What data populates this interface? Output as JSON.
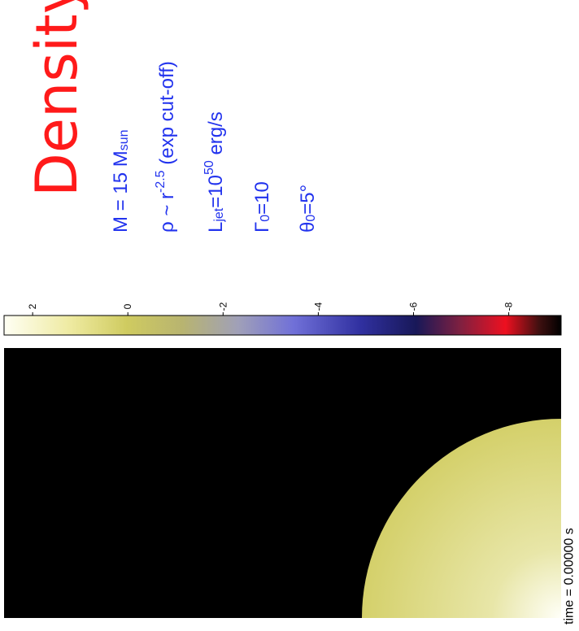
{
  "title": "Density",
  "parameters": [
    [
      {
        "text": "M = 15 M"
      },
      {
        "sub": "sun"
      }
    ],
    [
      {
        "text": "ρ ~ r"
      },
      {
        "sup": "-2.5"
      },
      {
        "text": " (exp cut-off)"
      }
    ],
    [
      {
        "text": "L"
      },
      {
        "sub": "jet"
      },
      {
        "text": "=10"
      },
      {
        "sup": "50"
      },
      {
        "text": " erg/s"
      }
    ],
    [
      {
        "text": "Γ"
      },
      {
        "sub": "0"
      },
      {
        "text": "=10"
      }
    ],
    [
      {
        "text": "θ"
      },
      {
        "sub": "0"
      },
      {
        "text": "=5°"
      }
    ]
  ],
  "colorbar": {
    "lim": [
      2.6,
      -9.1
    ],
    "ticks": [
      2,
      0,
      -2,
      -4,
      -6,
      -8
    ]
  },
  "time_label": "time = 0.00000 s"
}
